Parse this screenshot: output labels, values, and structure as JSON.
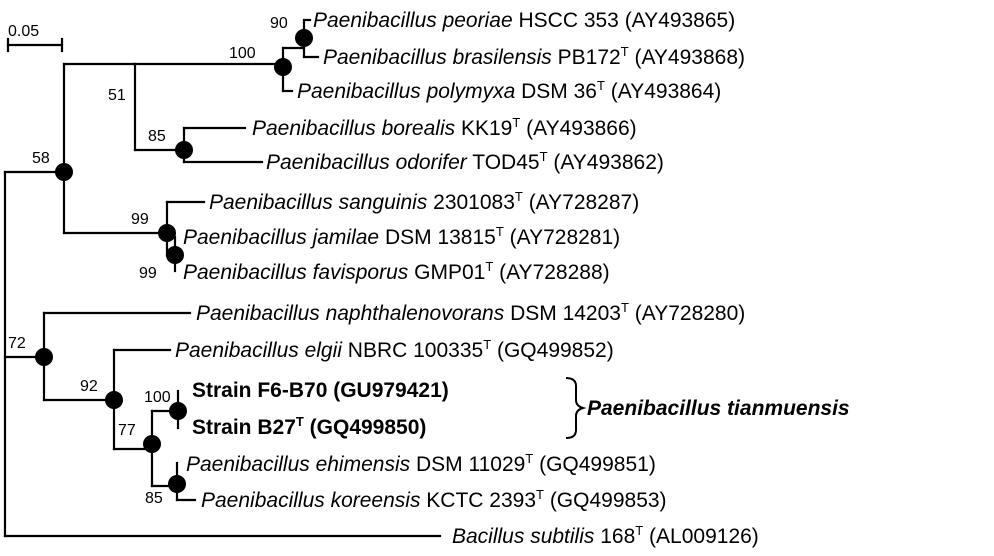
{
  "scale_bar": {
    "label": "0.05"
  },
  "taxa": [
    {
      "genus": "Paenibacillus peoriae",
      "strain": " HSCC 353",
      "type": "",
      "accession": " (AY493865)"
    },
    {
      "genus": "Paenibacillus brasilensis",
      "strain": " PB172",
      "type": "T",
      "accession": " (AY493868)"
    },
    {
      "genus": "Paenibacillus polymyxa",
      "strain": " DSM 36",
      "type": "T",
      "accession": " (AY493864)"
    },
    {
      "genus": "Paenibacillus borealis",
      "strain": " KK19",
      "type": "T",
      "accession": " (AY493866)"
    },
    {
      "genus": "Paenibacillus odorifer",
      "strain": " TOD45",
      "type": "T",
      "accession": " (AY493862)"
    },
    {
      "genus": "Paenibacillus sanguinis",
      "strain": " 2301083",
      "type": "T",
      "accession": " (AY728287)"
    },
    {
      "genus": "Paenibacillus jamilae",
      "strain": " DSM 13815",
      "type": "T",
      "accession": " (AY728281)"
    },
    {
      "genus": "Paenibacillus favisporus",
      "strain": " GMP01",
      "type": "T",
      "accession": " (AY728288)"
    },
    {
      "genus": "Paenibacillus naphthalenovorans",
      "strain": " DSM 14203",
      "type": "T",
      "accession": " (AY728280)"
    },
    {
      "genus": "Paenibacillus elgii",
      "strain": " NBRC 100335",
      "type": "T",
      "accession": " (GQ499852)"
    },
    {
      "genus": "",
      "strain": "Strain F6-B70 (GU979421)",
      "type": "",
      "accession": ""
    },
    {
      "genus": "",
      "strain": "Strain B27",
      "type": "T",
      "accession": " (GQ499850)"
    },
    {
      "genus": "Paenibacillus ehimensis",
      "strain": " DSM 11029",
      "type": "T",
      "accession": " (GQ499851)"
    },
    {
      "genus": "Paenibacillus koreensis",
      "strain": " KCTC 2393",
      "type": "T",
      "accession": " (GQ499853)"
    },
    {
      "genus": "Bacillus subtilis",
      "strain": " 168",
      "type": "T",
      "accession": " (AL009126)"
    }
  ],
  "bootstrap": [
    "90",
    "100",
    "51",
    "85",
    "58",
    "99",
    "99",
    "72",
    "92",
    "100",
    "77",
    "85"
  ],
  "clade_label": "Paenibacillus tianmuensis"
}
